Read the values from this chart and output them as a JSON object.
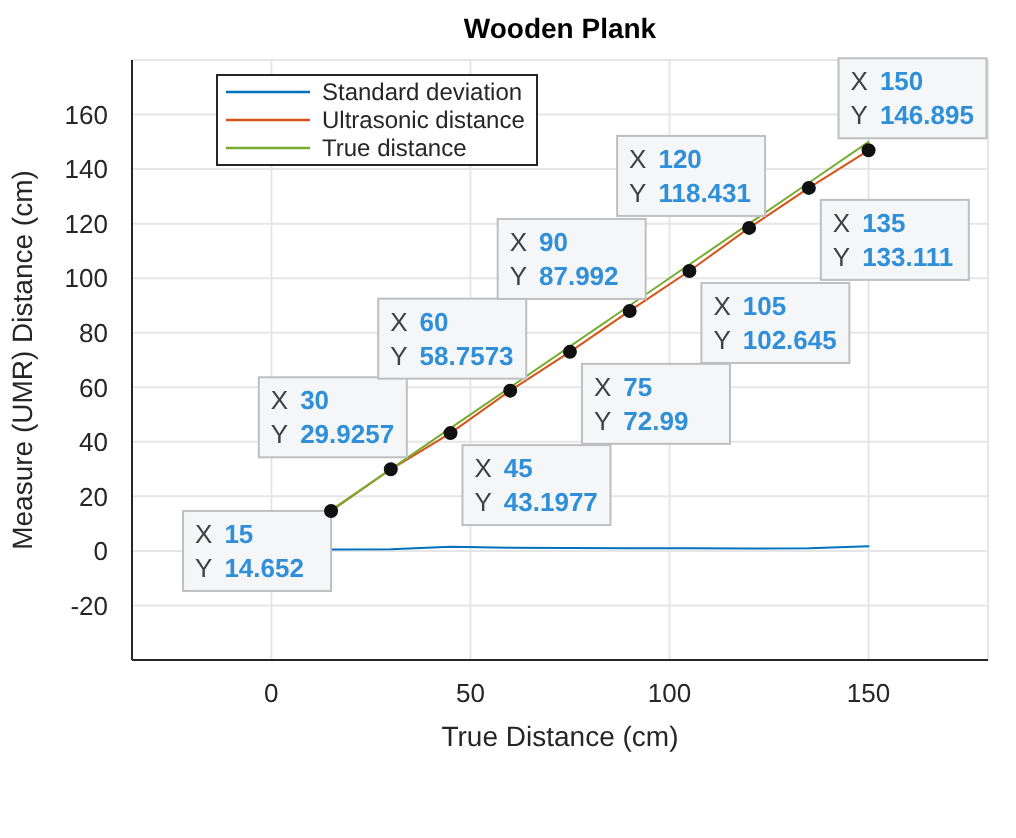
{
  "chart_data": {
    "type": "line",
    "title": "Wooden Plank",
    "xlabel": "True Distance (cm)",
    "ylabel": "Measure (UMR) Distance (cm)",
    "x": [
      15,
      30,
      45,
      60,
      75,
      90,
      105,
      120,
      135,
      150
    ],
    "series": [
      {
        "name": "Standard deviation",
        "color": "#0072bd",
        "values": [
          0.5,
          0.6,
          1.5,
          1.2,
          1.1,
          1.0,
          1.0,
          0.9,
          1.0,
          1.7
        ]
      },
      {
        "name": "Ultrasonic distance",
        "color": "#d95319",
        "marker": "circle",
        "values": [
          14.652,
          29.9257,
          43.1977,
          58.7573,
          72.99,
          87.992,
          102.645,
          118.431,
          133.111,
          146.895
        ]
      },
      {
        "name": "True distance",
        "color": "#77ac30",
        "values": [
          15,
          30,
          45,
          60,
          75,
          90,
          105,
          120,
          135,
          150
        ]
      }
    ],
    "xlim": [
      -35,
      180
    ],
    "xticks": [
      0,
      50,
      100,
      150
    ],
    "ylim": [
      -40,
      180
    ],
    "yticks": [
      -20,
      0,
      20,
      40,
      60,
      80,
      100,
      120,
      140,
      160
    ],
    "grid": true,
    "legend": "top left",
    "line_style": "solid",
    "annotations": [
      {
        "text": "X 15\nY 14.652",
        "x": 15,
        "y": 14.652
      },
      {
        "text": "X 30\nY 29.9257",
        "x": 30,
        "y": 29.9257
      },
      {
        "text": "X 45\nY 43.1977",
        "x": 45,
        "y": 43.1977
      },
      {
        "text": "X 60\nY 58.7573",
        "x": 60,
        "y": 58.7573
      },
      {
        "text": "X 75\nY 72.99",
        "x": 75,
        "y": 72.99
      },
      {
        "text": "X 90\nY 87.992",
        "x": 90,
        "y": 87.992
      },
      {
        "text": "X 105\nY 102.645",
        "x": 105,
        "y": 102.645
      },
      {
        "text": "X 120\nY 118.431",
        "x": 120,
        "y": 118.431
      },
      {
        "text": "X 135\nY 133.111",
        "x": 135,
        "y": 133.111
      },
      {
        "text": "X 150\nY 146.895",
        "x": 150,
        "y": 146.895
      }
    ]
  }
}
